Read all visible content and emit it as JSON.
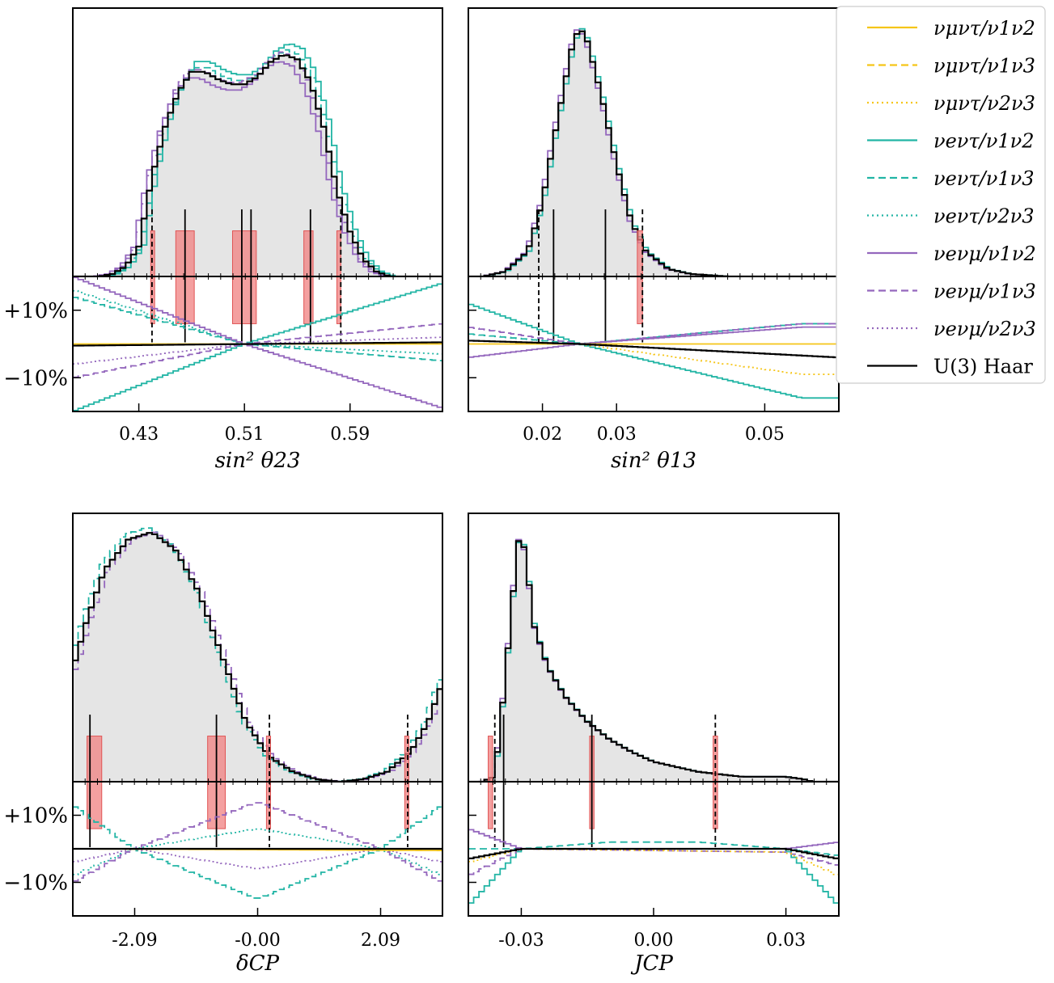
{
  "legend": {
    "position": "right",
    "entries": [
      {
        "label": "νμντ/ν1ν2",
        "color": "#f5c518",
        "dash": "solid"
      },
      {
        "label": "νμντ/ν1ν3",
        "color": "#f5c518",
        "dash": "dashed"
      },
      {
        "label": "νμντ/ν2ν3",
        "color": "#f5c518",
        "dash": "dotted"
      },
      {
        "label": "νeντ/ν1ν2",
        "color": "#22b5a5",
        "dash": "solid"
      },
      {
        "label": "νeντ/ν1ν3",
        "color": "#22b5a5",
        "dash": "dashed"
      },
      {
        "label": "νeντ/ν2ν3",
        "color": "#22b5a5",
        "dash": "dotted"
      },
      {
        "label": "νeνμ/ν1ν2",
        "color": "#9467bd",
        "dash": "solid"
      },
      {
        "label": "νeνμ/ν1ν3",
        "color": "#9467bd",
        "dash": "dashed"
      },
      {
        "label": "νeνμ/ν2ν3",
        "color": "#9467bd",
        "dash": "dotted"
      },
      {
        "label": "U(3) Haar",
        "color": "#000000",
        "dash": "solid"
      }
    ]
  },
  "colors": {
    "fill": "#e5e5e5",
    "band": "#f08080",
    "yellow": "#f5c518",
    "teal": "#22b5a5",
    "purple": "#9467bd",
    "black": "#000000"
  },
  "ratio_labels": [
    "+10%",
    "−10%"
  ],
  "chart_data": [
    {
      "type": "histogram",
      "xlabel": "sin² θ23",
      "xlim": [
        0.38,
        0.66
      ],
      "ticks": [
        0.43,
        0.51,
        0.59
      ],
      "tick_labels": [
        "0.43",
        "0.51",
        "0.59"
      ],
      "ratio_ylim": [
        -0.2,
        0.2
      ],
      "ratio_labels_shown": true,
      "haar": [
        [
          0.4,
          0.0
        ],
        [
          0.41,
          0.01
        ],
        [
          0.42,
          0.04
        ],
        [
          0.43,
          0.12
        ],
        [
          0.44,
          0.4
        ],
        [
          0.45,
          0.6
        ],
        [
          0.46,
          0.74
        ],
        [
          0.47,
          0.82
        ],
        [
          0.48,
          0.82
        ],
        [
          0.49,
          0.79
        ],
        [
          0.5,
          0.77
        ],
        [
          0.51,
          0.77
        ],
        [
          0.52,
          0.8
        ],
        [
          0.53,
          0.86
        ],
        [
          0.54,
          0.89
        ],
        [
          0.55,
          0.87
        ],
        [
          0.56,
          0.78
        ],
        [
          0.57,
          0.6
        ],
        [
          0.58,
          0.35
        ],
        [
          0.59,
          0.18
        ],
        [
          0.6,
          0.07
        ],
        [
          0.61,
          0.02
        ],
        [
          0.62,
          0.0
        ]
      ],
      "top_variants": [
        {
          "color": "#22b5a5",
          "dash": "solid",
          "shift": 0.004,
          "scale": 1.05
        },
        {
          "color": "#22b5a5",
          "dash": "dashed",
          "shift": 0.002,
          "scale": 1.02
        },
        {
          "color": "#9467bd",
          "dash": "solid",
          "shift": -0.004,
          "scale": 0.97
        },
        {
          "color": "#9467bd",
          "dash": "dashed",
          "shift": -0.002,
          "scale": 1.01
        }
      ],
      "dashed_lines": [
        0.44,
        0.583
      ],
      "solid_lines": [
        0.465,
        0.508,
        0.515,
        0.56
      ],
      "bands": [
        [
          0.439,
          0.442
        ],
        [
          0.458,
          0.472
        ],
        [
          0.501,
          0.519
        ],
        [
          0.555,
          0.562
        ],
        [
          0.58,
          0.583
        ]
      ],
      "ratio_curves": [
        {
          "color": "#22b5a5",
          "dash": "solid",
          "pts": [
            [
              0.38,
              -0.2
            ],
            [
              0.51,
              0.0
            ],
            [
              0.66,
              0.18
            ]
          ]
        },
        {
          "color": "#22b5a5",
          "dash": "dashed",
          "pts": [
            [
              0.38,
              0.14
            ],
            [
              0.51,
              0.0
            ],
            [
              0.66,
              -0.05
            ]
          ]
        },
        {
          "color": "#22b5a5",
          "dash": "dotted",
          "pts": [
            [
              0.38,
              0.16
            ],
            [
              0.51,
              0.0
            ],
            [
              0.66,
              -0.03
            ]
          ]
        },
        {
          "color": "#9467bd",
          "dash": "solid",
          "pts": [
            [
              0.38,
              0.2
            ],
            [
              0.51,
              0.0
            ],
            [
              0.66,
              -0.19
            ]
          ]
        },
        {
          "color": "#9467bd",
          "dash": "dashed",
          "pts": [
            [
              0.38,
              -0.1
            ],
            [
              0.51,
              0.0
            ],
            [
              0.66,
              0.06
            ]
          ]
        },
        {
          "color": "#9467bd",
          "dash": "dotted",
          "pts": [
            [
              0.38,
              -0.06
            ],
            [
              0.51,
              0.0
            ],
            [
              0.66,
              0.02
            ]
          ]
        },
        {
          "color": "#f5c518",
          "dash": "solid",
          "pts": [
            [
              0.38,
              0.0
            ],
            [
              0.66,
              0.0
            ]
          ]
        },
        {
          "color": "#000000",
          "dash": "solid",
          "pts": [
            [
              0.38,
              -0.005
            ],
            [
              0.66,
              0.005
            ]
          ]
        }
      ]
    },
    {
      "type": "histogram",
      "xlabel": "sin² θ13",
      "xlim": [
        0.01,
        0.06
      ],
      "ticks": [
        0.02,
        0.03,
        0.05
      ],
      "tick_labels": [
        "0.02",
        "0.03",
        "0.05"
      ],
      "ratio_ylim": [
        -0.2,
        0.2
      ],
      "ratio_labels_shown": false,
      "haar": [
        [
          0.012,
          0.0
        ],
        [
          0.015,
          0.02
        ],
        [
          0.018,
          0.1
        ],
        [
          0.02,
          0.3
        ],
        [
          0.022,
          0.62
        ],
        [
          0.024,
          0.92
        ],
        [
          0.025,
          1.0
        ],
        [
          0.026,
          0.95
        ],
        [
          0.028,
          0.72
        ],
        [
          0.03,
          0.45
        ],
        [
          0.032,
          0.22
        ],
        [
          0.034,
          0.1
        ],
        [
          0.037,
          0.03
        ],
        [
          0.04,
          0.01
        ],
        [
          0.045,
          0.0
        ]
      ],
      "top_variants": [
        {
          "color": "#22b5a5",
          "dash": "solid",
          "shift": 0.0002,
          "scale": 1.0
        },
        {
          "color": "#9467bd",
          "dash": "solid",
          "shift": -0.0002,
          "scale": 1.0
        }
      ],
      "dashed_lines": [
        0.0195,
        0.0335
      ],
      "solid_lines": [
        0.0215,
        0.0285
      ],
      "bands": [
        [
          0.0328,
          0.0335
        ]
      ],
      "ratio_curves": [
        {
          "color": "#22b5a5",
          "dash": "solid",
          "pts": [
            [
              0.01,
              0.12
            ],
            [
              0.025,
              0.0
            ],
            [
              0.055,
              -0.16
            ]
          ]
        },
        {
          "color": "#22b5a5",
          "dash": "dashed",
          "pts": [
            [
              0.01,
              0.03
            ],
            [
              0.025,
              0.0
            ],
            [
              0.055,
              0.06
            ]
          ]
        },
        {
          "color": "#9467bd",
          "dash": "solid",
          "pts": [
            [
              0.01,
              -0.04
            ],
            [
              0.025,
              0.0
            ],
            [
              0.055,
              0.05
            ]
          ]
        },
        {
          "color": "#9467bd",
          "dash": "dashed",
          "pts": [
            [
              0.01,
              0.05
            ],
            [
              0.025,
              0.0
            ],
            [
              0.055,
              0.06
            ]
          ]
        },
        {
          "color": "#f5c518",
          "dash": "dotted",
          "pts": [
            [
              0.01,
              0.01
            ],
            [
              0.025,
              0.0
            ],
            [
              0.055,
              -0.09
            ]
          ]
        },
        {
          "color": "#f5c518",
          "dash": "solid",
          "pts": [
            [
              0.01,
              0.0
            ],
            [
              0.06,
              0.0
            ]
          ]
        },
        {
          "color": "#000000",
          "dash": "solid",
          "pts": [
            [
              0.01,
              0.01
            ],
            [
              0.025,
              0.0
            ],
            [
              0.06,
              -0.04
            ]
          ]
        }
      ]
    },
    {
      "type": "histogram",
      "xlabel": "δCP",
      "xlim": [
        -3.1416,
        3.1416
      ],
      "ticks": [
        -2.09,
        -0.0,
        2.09
      ],
      "tick_labels": [
        "-2.09",
        "-0.00",
        "2.09"
      ],
      "ratio_ylim": [
        -0.2,
        0.2
      ],
      "ratio_labels_shown": true,
      "haar": [
        [
          -3.14,
          0.45
        ],
        [
          -2.9,
          0.65
        ],
        [
          -2.6,
          0.85
        ],
        [
          -2.2,
          0.97
        ],
        [
          -1.8,
          1.0
        ],
        [
          -1.4,
          0.93
        ],
        [
          -1.0,
          0.76
        ],
        [
          -0.6,
          0.5
        ],
        [
          -0.2,
          0.24
        ],
        [
          0.2,
          0.1
        ],
        [
          0.6,
          0.04
        ],
        [
          1.0,
          0.01
        ],
        [
          1.4,
          0.0
        ],
        [
          1.8,
          0.01
        ],
        [
          2.2,
          0.04
        ],
        [
          2.6,
          0.12
        ],
        [
          2.9,
          0.24
        ],
        [
          3.14,
          0.4
        ]
      ],
      "top_variants": [
        {
          "color": "#22b5a5",
          "dash": "dashed",
          "shift": -0.06,
          "scale": 1.02
        },
        {
          "color": "#9467bd",
          "dash": "dashed",
          "shift": 0.06,
          "scale": 1.0
        }
      ],
      "dashed_lines": [
        0.2,
        2.55
      ],
      "solid_lines": [
        -2.85,
        -0.7
      ],
      "bands": [
        [
          -2.9,
          -2.65
        ],
        [
          -0.85,
          -0.55
        ],
        [
          0.15,
          0.22
        ],
        [
          2.5,
          2.57
        ]
      ],
      "ratio_curves": [
        {
          "color": "#22b5a5",
          "dash": "dashed",
          "pts": [
            [
              -3.14,
              0.13
            ],
            [
              -2.1,
              0.0
            ],
            [
              0,
              -0.15
            ],
            [
              2.1,
              0.0
            ],
            [
              3.14,
              0.13
            ]
          ]
        },
        {
          "color": "#22b5a5",
          "dash": "dotted",
          "pts": [
            [
              -3.14,
              -0.08
            ],
            [
              -2.1,
              0.0
            ],
            [
              0,
              0.06
            ],
            [
              2.1,
              0.0
            ],
            [
              3.14,
              -0.08
            ]
          ]
        },
        {
          "color": "#9467bd",
          "dash": "dashed",
          "pts": [
            [
              -3.14,
              -0.1
            ],
            [
              -2.1,
              0.0
            ],
            [
              0,
              0.14
            ],
            [
              2.1,
              0.0
            ],
            [
              3.14,
              -0.1
            ]
          ]
        },
        {
          "color": "#9467bd",
          "dash": "dotted",
          "pts": [
            [
              -3.14,
              -0.04
            ],
            [
              -2.1,
              0.0
            ],
            [
              0,
              -0.06
            ],
            [
              2.1,
              0.0
            ],
            [
              3.14,
              -0.04
            ]
          ]
        },
        {
          "color": "#f5c518",
          "dash": "solid",
          "pts": [
            [
              -3.14,
              0.0
            ],
            [
              3.14,
              -0.005
            ]
          ]
        },
        {
          "color": "#000000",
          "dash": "solid",
          "pts": [
            [
              -3.14,
              0.0
            ],
            [
              3.14,
              0.0
            ]
          ]
        }
      ]
    },
    {
      "type": "histogram",
      "xlabel": "JCP",
      "xlim": [
        -0.042,
        0.042
      ],
      "ticks": [
        -0.03,
        0.0,
        0.03
      ],
      "tick_labels": [
        "-0.03",
        "0.00",
        "0.03"
      ],
      "ratio_ylim": [
        -0.2,
        0.2
      ],
      "ratio_labels_shown": false,
      "haar": [
        [
          -0.039,
          0.0
        ],
        [
          -0.036,
          0.02
        ],
        [
          -0.034,
          0.35
        ],
        [
          -0.032,
          0.72
        ],
        [
          -0.031,
          0.94
        ],
        [
          -0.03,
          1.0
        ],
        [
          -0.029,
          0.9
        ],
        [
          -0.027,
          0.62
        ],
        [
          -0.024,
          0.46
        ],
        [
          -0.02,
          0.34
        ],
        [
          -0.015,
          0.24
        ],
        [
          -0.01,
          0.17
        ],
        [
          -0.005,
          0.12
        ],
        [
          0.0,
          0.08
        ],
        [
          0.005,
          0.06
        ],
        [
          0.01,
          0.04
        ],
        [
          0.015,
          0.03
        ],
        [
          0.02,
          0.02
        ],
        [
          0.025,
          0.02
        ],
        [
          0.03,
          0.02
        ],
        [
          0.034,
          0.01
        ],
        [
          0.036,
          0.0
        ]
      ],
      "top_variants": [
        {
          "color": "#22b5a5",
          "dash": "solid",
          "shift": 0.0001,
          "scale": 1.0
        },
        {
          "color": "#9467bd",
          "dash": "solid",
          "shift": -0.0001,
          "scale": 1.0
        }
      ],
      "dashed_lines": [
        -0.036,
        0.014
      ],
      "solid_lines": [
        -0.034,
        -0.014
      ],
      "bands": [
        [
          -0.0375,
          -0.0365
        ],
        [
          -0.0145,
          -0.0135
        ],
        [
          0.0135,
          0.0145
        ]
      ],
      "ratio_curves": [
        {
          "color": "#22b5a5",
          "dash": "solid",
          "pts": [
            [
              -0.042,
              -0.17
            ],
            [
              -0.03,
              0.0
            ],
            [
              0.03,
              0.0
            ],
            [
              0.042,
              -0.17
            ]
          ]
        },
        {
          "color": "#22b5a5",
          "dash": "dashed",
          "pts": [
            [
              -0.042,
              0.0
            ],
            [
              -0.03,
              0.0
            ],
            [
              -0.01,
              0.02
            ],
            [
              0.01,
              0.02
            ],
            [
              0.03,
              0.0
            ],
            [
              0.042,
              -0.02
            ]
          ]
        },
        {
          "color": "#9467bd",
          "dash": "solid",
          "pts": [
            [
              -0.042,
              0.06
            ],
            [
              -0.03,
              0.0
            ],
            [
              0.03,
              0.0
            ],
            [
              0.042,
              0.02
            ]
          ]
        },
        {
          "color": "#9467bd",
          "dash": "dashed",
          "pts": [
            [
              -0.042,
              -0.08
            ],
            [
              -0.03,
              0.0
            ],
            [
              0.03,
              -0.01
            ],
            [
              0.042,
              -0.05
            ]
          ]
        },
        {
          "color": "#f5c518",
          "dash": "dotted",
          "pts": [
            [
              -0.042,
              -0.04
            ],
            [
              -0.03,
              0.0
            ],
            [
              0.03,
              -0.01
            ],
            [
              0.042,
              -0.08
            ]
          ]
        },
        {
          "color": "#000000",
          "dash": "solid",
          "pts": [
            [
              -0.042,
              -0.03
            ],
            [
              -0.03,
              0.0
            ],
            [
              0.03,
              0.0
            ],
            [
              0.042,
              -0.03
            ]
          ]
        }
      ]
    }
  ]
}
